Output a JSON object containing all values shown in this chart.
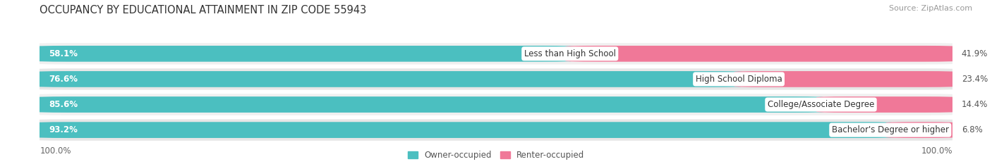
{
  "title": "OCCUPANCY BY EDUCATIONAL ATTAINMENT IN ZIP CODE 55943",
  "source": "Source: ZipAtlas.com",
  "categories": [
    "Less than High School",
    "High School Diploma",
    "College/Associate Degree",
    "Bachelor's Degree or higher"
  ],
  "owner_pct": [
    58.1,
    76.6,
    85.6,
    93.2
  ],
  "renter_pct": [
    41.9,
    23.4,
    14.4,
    6.8
  ],
  "owner_color": "#4bbfc0",
  "renter_color": "#f07898",
  "row_bg_colors": [
    "#f0f0f0",
    "#e6e6e6",
    "#f0f0f0",
    "#e6e6e6"
  ],
  "axis_label_left": "100.0%",
  "axis_label_right": "100.0%",
  "legend_owner": "Owner-occupied",
  "legend_renter": "Renter-occupied",
  "title_fontsize": 10.5,
  "label_fontsize": 8.5,
  "pct_fontsize": 8.5,
  "source_fontsize": 8
}
